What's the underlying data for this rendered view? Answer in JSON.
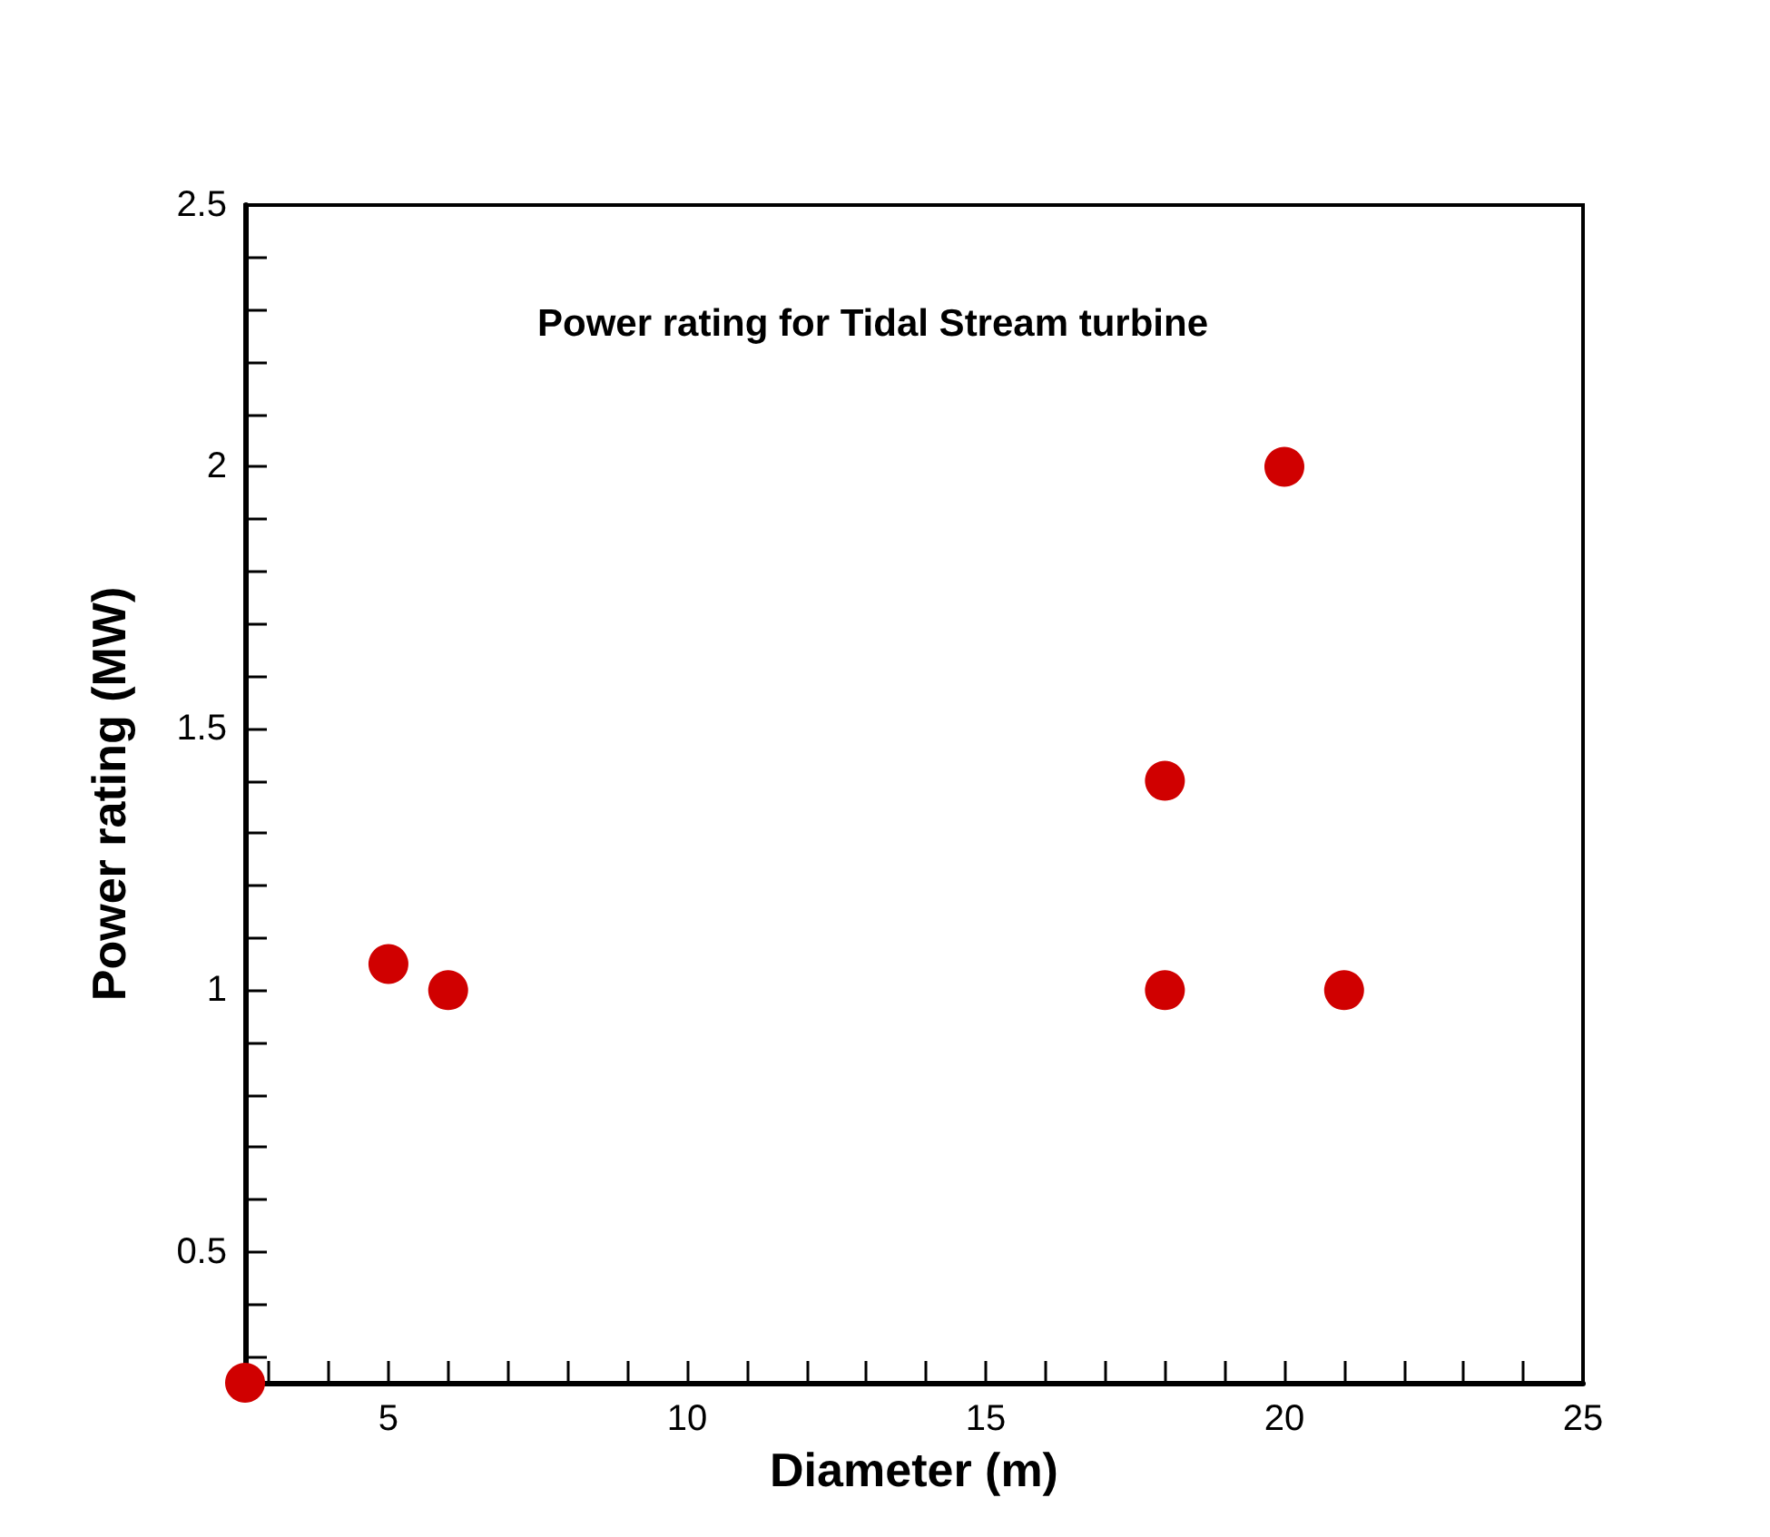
{
  "chart_data": {
    "type": "scatter",
    "title": "Power rating for Tidal Stream turbine",
    "xlabel": "Diameter (m)",
    "ylabel": "Power rating (MW)",
    "x": [
      2.6,
      5,
      6,
      18,
      18,
      20,
      21
    ],
    "series": [
      {
        "color": "#d00000",
        "values": [
          0.25,
          1.05,
          1,
          1.4,
          1,
          2,
          1
        ]
      }
    ],
    "xlim": [
      2.6,
      25
    ],
    "xticks": [
      {
        "value": 3,
        "label": null
      },
      {
        "value": 4,
        "label": null
      },
      5,
      {
        "value": 6,
        "label": null
      },
      {
        "value": 7,
        "label": null
      },
      {
        "value": 8,
        "label": null
      },
      {
        "value": 9,
        "label": null
      },
      10,
      {
        "value": 11,
        "label": null
      },
      {
        "value": 12,
        "label": null
      },
      {
        "value": 13,
        "label": null
      },
      {
        "value": 14,
        "label": null
      },
      15,
      {
        "value": 16,
        "label": null
      },
      {
        "value": 17,
        "label": null
      },
      {
        "value": 18,
        "label": null
      },
      {
        "value": 19,
        "label": null
      },
      20,
      {
        "value": 21,
        "label": null
      },
      {
        "value": 22,
        "label": null
      },
      {
        "value": 23,
        "label": null
      },
      {
        "value": 24,
        "label": null
      },
      25
    ],
    "ylim": [
      0.25,
      2.5
    ],
    "yticks": [
      {
        "value": 0.3,
        "label": null
      },
      {
        "value": 0.4,
        "label": null
      },
      0.5,
      {
        "value": 0.6,
        "label": null
      },
      {
        "value": 0.7,
        "label": null
      },
      {
        "value": 0.8,
        "label": null
      },
      {
        "value": 0.9,
        "label": null
      },
      1,
      {
        "value": 1.1,
        "label": null
      },
      {
        "value": 1.2,
        "label": null
      },
      {
        "value": 1.3,
        "label": null
      },
      {
        "value": 1.4,
        "label": null
      },
      1.5,
      {
        "value": 1.6,
        "label": null
      },
      {
        "value": 1.7,
        "label": null
      },
      {
        "value": 1.8,
        "label": null
      },
      {
        "value": 1.9,
        "label": null
      },
      2,
      {
        "value": 2.1,
        "label": null
      },
      {
        "value": 2.2,
        "label": null
      },
      {
        "value": 2.3,
        "label": null
      },
      {
        "value": 2.4,
        "label": null
      },
      2.5
    ],
    "grid": false,
    "marker": "circle"
  }
}
